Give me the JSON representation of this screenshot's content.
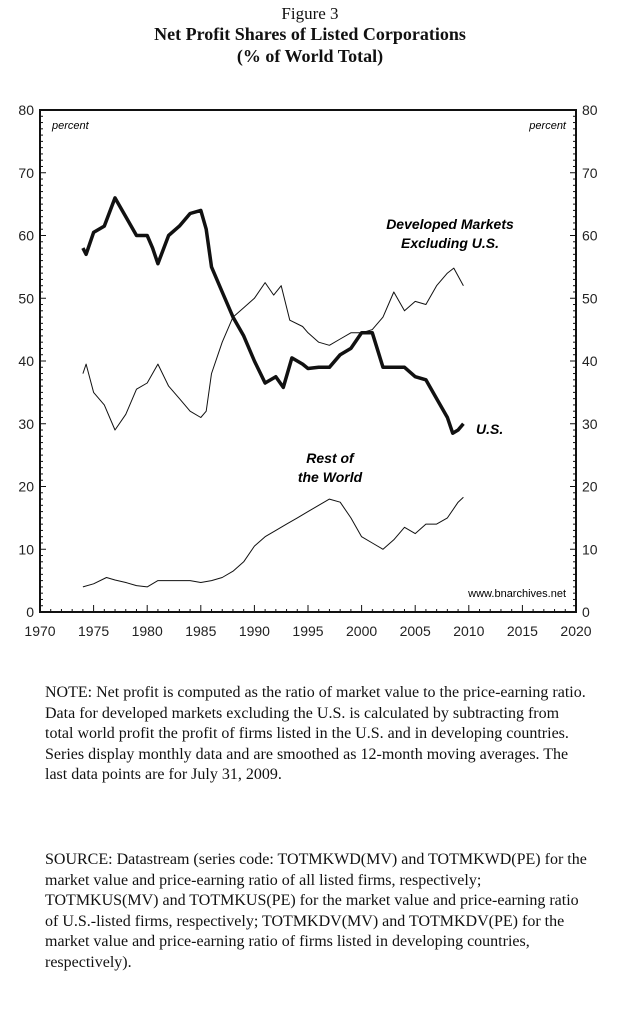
{
  "figure_label": "Figure 3",
  "title_line1": "Net Profit Shares of Listed Corporations",
  "title_line2": "(% of World Total)",
  "note": "NOTE: Net profit is computed as the ratio of market value to the price-earning ratio. Data for developed markets excluding the U.S. is calculated by subtracting from total world profit the profit of firms listed in the U.S. and in developing countries. Series display monthly data and are smoothed as 12-month moving averages. The last data points are for July 31, 2009.",
  "source": "SOURCE: Datastream (series code: TOTMKWD(MV) and TOTMKWD(PE) for the market value and price-earning ratio of all listed firms, respectively; TOTMKUS(MV) and TOTMKUS(PE) for the market value and price-earning ratio of U.S.-listed firms, respectively; TOTMKDV(MV) and TOTMKDV(PE) for the market value and price-earning ratio of firms listed in developing countries, respectively).",
  "chart_data": {
    "type": "line",
    "ylabel_left": "percent",
    "ylabel_right": "percent",
    "xlim": [
      1970,
      2020
    ],
    "ylim": [
      0,
      80
    ],
    "x_ticks": [
      "1970",
      "1975",
      "1980",
      "1985",
      "1990",
      "1995",
      "2000",
      "2005",
      "2010",
      "2015",
      "2020"
    ],
    "y_ticks": [
      "0",
      "10",
      "20",
      "30",
      "40",
      "50",
      "60",
      "70",
      "80"
    ],
    "grid": false,
    "watermark": "www.bnarchives.net",
    "series": [
      {
        "name": "U.S.",
        "label_lines": [
          "U.S."
        ],
        "weight": "bold",
        "points": [
          [
            1974,
            58
          ],
          [
            1974.3,
            57
          ],
          [
            1975,
            60.5
          ],
          [
            1976,
            61.5
          ],
          [
            1977,
            66
          ],
          [
            1978,
            63
          ],
          [
            1979,
            60
          ],
          [
            1980,
            60
          ],
          [
            1980.5,
            58
          ],
          [
            1981,
            55.5
          ],
          [
            1982,
            60
          ],
          [
            1983,
            61.5
          ],
          [
            1984,
            63.5
          ],
          [
            1985,
            64
          ],
          [
            1985.5,
            61
          ],
          [
            1986,
            55
          ],
          [
            1987,
            51
          ],
          [
            1988,
            47
          ],
          [
            1989,
            44
          ],
          [
            1990,
            40
          ],
          [
            1991,
            36.5
          ],
          [
            1992,
            37.5
          ],
          [
            1992.7,
            35.8
          ],
          [
            1993.5,
            40.5
          ],
          [
            1994.5,
            39.5
          ],
          [
            1995,
            38.8
          ],
          [
            1996,
            39
          ],
          [
            1997,
            39
          ],
          [
            1998,
            41
          ],
          [
            1999,
            42
          ],
          [
            2000,
            44.5
          ],
          [
            2001,
            44.5
          ],
          [
            2002,
            39
          ],
          [
            2003,
            39
          ],
          [
            2004,
            39
          ],
          [
            2005,
            37.5
          ],
          [
            2006,
            37
          ],
          [
            2007,
            34
          ],
          [
            2008,
            31
          ],
          [
            2008.5,
            28.5
          ],
          [
            2009,
            29
          ],
          [
            2009.5,
            30
          ]
        ]
      },
      {
        "name": "Developed Markets Excluding U.S.",
        "label_lines": [
          "Developed Markets",
          "Excluding U.S."
        ],
        "weight": "thin",
        "points": [
          [
            1974,
            38
          ],
          [
            1974.3,
            39.5
          ],
          [
            1975,
            35
          ],
          [
            1976,
            33
          ],
          [
            1977,
            29
          ],
          [
            1978,
            31.5
          ],
          [
            1979,
            35.5
          ],
          [
            1980,
            36.5
          ],
          [
            1981,
            39.5
          ],
          [
            1982,
            36
          ],
          [
            1983,
            34
          ],
          [
            1984,
            32
          ],
          [
            1985,
            31
          ],
          [
            1985.5,
            32
          ],
          [
            1986,
            38
          ],
          [
            1987,
            43
          ],
          [
            1988,
            47
          ],
          [
            1989,
            48.5
          ],
          [
            1990,
            50
          ],
          [
            1991,
            52.5
          ],
          [
            1991.8,
            50.5
          ],
          [
            1992.5,
            52
          ],
          [
            1993.3,
            46.5
          ],
          [
            1994.5,
            45.5
          ],
          [
            1995,
            44.5
          ],
          [
            1996,
            43
          ],
          [
            1997,
            42.5
          ],
          [
            1998,
            43.5
          ],
          [
            1999,
            44.5
          ],
          [
            2000,
            44.5
          ],
          [
            2001,
            45
          ],
          [
            2002,
            47
          ],
          [
            2003,
            51
          ],
          [
            2004,
            48
          ],
          [
            2005,
            49.5
          ],
          [
            2006,
            49
          ],
          [
            2007,
            52
          ],
          [
            2008,
            54
          ],
          [
            2008.6,
            54.8
          ],
          [
            2009.5,
            52
          ]
        ]
      },
      {
        "name": "Rest of the World",
        "label_lines": [
          "Rest of",
          "the World"
        ],
        "weight": "thin",
        "points": [
          [
            1974,
            4
          ],
          [
            1975,
            4.5
          ],
          [
            1976.2,
            5.5
          ],
          [
            1977,
            5.1
          ],
          [
            1978,
            4.7
          ],
          [
            1979,
            4.2
          ],
          [
            1980,
            4
          ],
          [
            1981,
            5
          ],
          [
            1982,
            5
          ],
          [
            1983,
            5
          ],
          [
            1984,
            5
          ],
          [
            1985,
            4.7
          ],
          [
            1986,
            5
          ],
          [
            1987,
            5.5
          ],
          [
            1988,
            6.5
          ],
          [
            1989,
            8
          ],
          [
            1990,
            10.5
          ],
          [
            1991,
            12
          ],
          [
            1992,
            13
          ],
          [
            1993,
            14
          ],
          [
            1994,
            15
          ],
          [
            1995,
            16
          ],
          [
            1996,
            17
          ],
          [
            1997,
            18
          ],
          [
            1998,
            17.5
          ],
          [
            1999,
            15
          ],
          [
            2000,
            12
          ],
          [
            2001,
            11
          ],
          [
            2002,
            10
          ],
          [
            2003,
            11.5
          ],
          [
            2004,
            13.5
          ],
          [
            2005,
            12.5
          ],
          [
            2006,
            14
          ],
          [
            2007,
            14
          ],
          [
            2008,
            15
          ],
          [
            2009,
            17.5
          ],
          [
            2009.5,
            18.3
          ]
        ]
      }
    ]
  }
}
